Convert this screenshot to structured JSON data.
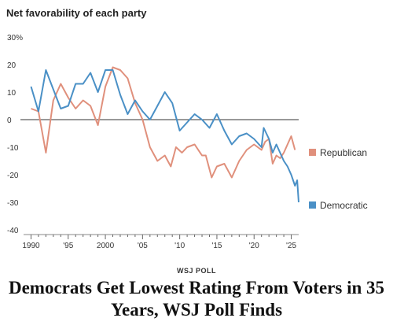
{
  "chart_data": {
    "type": "line",
    "title": "Net favorability of each party",
    "yticks": [
      "30%",
      "20",
      "10",
      "0",
      "-10",
      "-20",
      "-30",
      "-40"
    ],
    "ytick_values": [
      30,
      20,
      10,
      0,
      -10,
      -20,
      -30,
      -40
    ],
    "xticks": [
      "1990",
      "'95",
      "2000",
      "'05",
      "'10",
      "'15",
      "'20",
      "'25"
    ],
    "xtick_values": [
      1990,
      1995,
      2000,
      2005,
      2010,
      2015,
      2020,
      2025
    ],
    "xlim": [
      1989,
      2026
    ],
    "ylim": [
      -40,
      30
    ],
    "zero_line": true,
    "legend_placement": "right",
    "series": [
      {
        "name": "Republican",
        "color": "#e0907c",
        "points": [
          [
            1990,
            4
          ],
          [
            1991,
            3
          ],
          [
            1992,
            -12
          ],
          [
            1993,
            7
          ],
          [
            1994,
            13
          ],
          [
            1995,
            8
          ],
          [
            1996,
            4
          ],
          [
            1997,
            7
          ],
          [
            1998,
            5
          ],
          [
            1999,
            -2
          ],
          [
            2000,
            12
          ],
          [
            2001,
            19
          ],
          [
            2002,
            18
          ],
          [
            2003,
            15
          ],
          [
            2004,
            6
          ],
          [
            2005,
            0
          ],
          [
            2006,
            -10
          ],
          [
            2007,
            -15
          ],
          [
            2008,
            -13
          ],
          [
            2008.8,
            -17
          ],
          [
            2009.5,
            -10
          ],
          [
            2010.3,
            -12
          ],
          [
            2011,
            -10
          ],
          [
            2012,
            -9
          ],
          [
            2013,
            -13
          ],
          [
            2013.5,
            -13
          ],
          [
            2014.3,
            -21
          ],
          [
            2015,
            -17
          ],
          [
            2016,
            -16
          ],
          [
            2017,
            -21
          ],
          [
            2018,
            -15
          ],
          [
            2019,
            -11
          ],
          [
            2020,
            -9
          ],
          [
            2021,
            -11
          ],
          [
            2021.5,
            -8
          ],
          [
            2022,
            -7
          ],
          [
            2022.5,
            -16
          ],
          [
            2023,
            -13
          ],
          [
            2023.5,
            -14
          ],
          [
            2024,
            -12
          ],
          [
            2025,
            -6
          ],
          [
            2025.5,
            -11
          ]
        ]
      },
      {
        "name": "Democratic",
        "color": "#4a90c6",
        "points": [
          [
            1990,
            12
          ],
          [
            1991,
            3
          ],
          [
            1992,
            18
          ],
          [
            1993,
            11
          ],
          [
            1994,
            4
          ],
          [
            1995,
            5
          ],
          [
            1996,
            13
          ],
          [
            1997,
            13
          ],
          [
            1998,
            17
          ],
          [
            1999,
            10
          ],
          [
            2000,
            18
          ],
          [
            2001,
            18
          ],
          [
            2002,
            9
          ],
          [
            2003,
            2
          ],
          [
            2004,
            7
          ],
          [
            2005,
            3
          ],
          [
            2006,
            0
          ],
          [
            2007,
            5
          ],
          [
            2008,
            10
          ],
          [
            2009,
            6
          ],
          [
            2010,
            -4
          ],
          [
            2011,
            -1
          ],
          [
            2012,
            2
          ],
          [
            2013,
            0
          ],
          [
            2014,
            -3
          ],
          [
            2015,
            2
          ],
          [
            2016,
            -4
          ],
          [
            2017,
            -9
          ],
          [
            2018,
            -6
          ],
          [
            2019,
            -5
          ],
          [
            2020,
            -7
          ],
          [
            2021,
            -10
          ],
          [
            2021.3,
            -3
          ],
          [
            2022,
            -7
          ],
          [
            2022.5,
            -12
          ],
          [
            2023,
            -9
          ],
          [
            2024,
            -15
          ],
          [
            2024.5,
            -17
          ],
          [
            2025,
            -20
          ],
          [
            2025.5,
            -24
          ],
          [
            2025.8,
            -22
          ],
          [
            2026,
            -30
          ]
        ]
      }
    ]
  },
  "kicker": "WSJ POLL",
  "headline": "Democrats Get Lowest Rating From Voters in 35 Years, WSJ Poll Finds"
}
